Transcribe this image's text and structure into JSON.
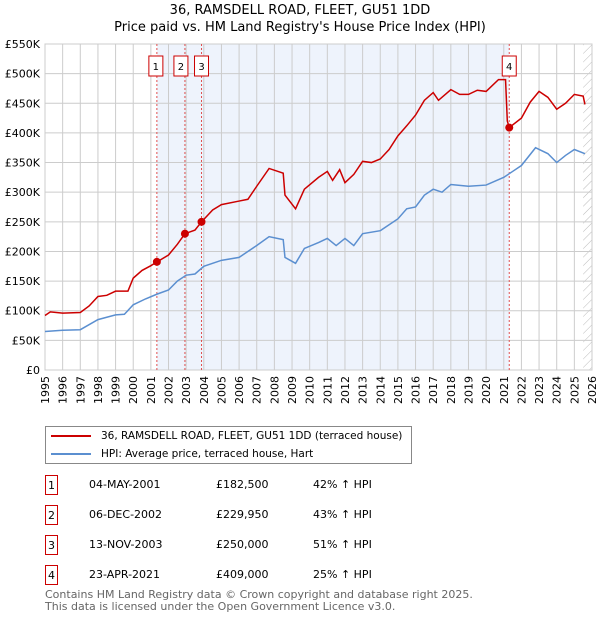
{
  "chart_data": {
    "type": "line",
    "title": "36, RAMSDELL ROAD, FLEET, GU51 1DD",
    "subtitle": "Price paid vs. HM Land Registry's House Price Index (HPI)",
    "xlim": [
      1995,
      2026
    ],
    "ylim": [
      0,
      550000
    ],
    "x_ticks": [
      "1995",
      "1996",
      "1997",
      "1998",
      "1999",
      "2000",
      "2001",
      "2002",
      "2003",
      "2004",
      "2005",
      "2006",
      "2007",
      "2008",
      "2009",
      "2010",
      "2011",
      "2012",
      "2013",
      "2014",
      "2015",
      "2016",
      "2017",
      "2018",
      "2019",
      "2020",
      "2021",
      "2022",
      "2023",
      "2024",
      "2025",
      "2026"
    ],
    "y_ticks": [
      {
        "v": 0,
        "l": "£0"
      },
      {
        "v": 50000,
        "l": "£50K"
      },
      {
        "v": 100000,
        "l": "£100K"
      },
      {
        "v": 150000,
        "l": "£150K"
      },
      {
        "v": 200000,
        "l": "£200K"
      },
      {
        "v": 250000,
        "l": "£250K"
      },
      {
        "v": 300000,
        "l": "£300K"
      },
      {
        "v": 350000,
        "l": "£350K"
      },
      {
        "v": 400000,
        "l": "£400K"
      },
      {
        "v": 450000,
        "l": "£450K"
      },
      {
        "v": 500000,
        "l": "£500K"
      },
      {
        "v": 550000,
        "l": "£550K"
      }
    ],
    "grid": true,
    "series": [
      {
        "name": "36, RAMSDELL ROAD, FLEET, GU51 1DD (terraced house)",
        "color": "#cc0000",
        "points": [
          [
            1995,
            92000
          ],
          [
            1995.3,
            98000
          ],
          [
            1996,
            96000
          ],
          [
            1997,
            97000
          ],
          [
            1997.5,
            108000
          ],
          [
            1998,
            124000
          ],
          [
            1998.5,
            126000
          ],
          [
            1999,
            133000
          ],
          [
            1999.7,
            133000
          ],
          [
            2000,
            155000
          ],
          [
            2000.5,
            168000
          ],
          [
            2001,
            176000
          ],
          [
            2001.35,
            182500
          ],
          [
            2002,
            194000
          ],
          [
            2002.5,
            212000
          ],
          [
            2002.93,
            229950
          ],
          [
            2003.5,
            236000
          ],
          [
            2003.87,
            250000
          ],
          [
            2004.5,
            270000
          ],
          [
            2005,
            279000
          ],
          [
            2006,
            285000
          ],
          [
            2006.5,
            288000
          ],
          [
            2007,
            310000
          ],
          [
            2007.7,
            340000
          ],
          [
            2008.5,
            332000
          ],
          [
            2008.6,
            295000
          ],
          [
            2009.2,
            272000
          ],
          [
            2009.7,
            305000
          ],
          [
            2010.5,
            325000
          ],
          [
            2011,
            335000
          ],
          [
            2011.3,
            320000
          ],
          [
            2011.7,
            338000
          ],
          [
            2012,
            316000
          ],
          [
            2012.5,
            330000
          ],
          [
            2013,
            352000
          ],
          [
            2013.5,
            350000
          ],
          [
            2014,
            356000
          ],
          [
            2014.5,
            372000
          ],
          [
            2015,
            395000
          ],
          [
            2015.5,
            412000
          ],
          [
            2016,
            430000
          ],
          [
            2016.5,
            455000
          ],
          [
            2017,
            468000
          ],
          [
            2017.3,
            455000
          ],
          [
            2018,
            473000
          ],
          [
            2018.5,
            465000
          ],
          [
            2019,
            465000
          ],
          [
            2019.5,
            472000
          ],
          [
            2020,
            470000
          ],
          [
            2020.7,
            490000
          ],
          [
            2021.1,
            490000
          ],
          [
            2021.2,
            420000
          ],
          [
            2021.31,
            409000
          ],
          [
            2022,
            425000
          ],
          [
            2022.5,
            452000
          ],
          [
            2023,
            470000
          ],
          [
            2023.5,
            460000
          ],
          [
            2024,
            440000
          ],
          [
            2024.5,
            450000
          ],
          [
            2025,
            465000
          ],
          [
            2025.5,
            462000
          ],
          [
            2025.6,
            448000
          ]
        ]
      },
      {
        "name": "HPI: Average price, terraced house, Hart",
        "color": "#5b8fd0",
        "points": [
          [
            1995,
            65000
          ],
          [
            1996,
            67000
          ],
          [
            1997,
            68000
          ],
          [
            1998,
            85000
          ],
          [
            1999,
            93000
          ],
          [
            1999.5,
            94000
          ],
          [
            2000,
            110000
          ],
          [
            2000.7,
            120000
          ],
          [
            2001.35,
            128000
          ],
          [
            2002,
            135000
          ],
          [
            2002.5,
            150000
          ],
          [
            2003,
            160000
          ],
          [
            2003.5,
            162000
          ],
          [
            2004,
            175000
          ],
          [
            2005,
            185000
          ],
          [
            2006,
            190000
          ],
          [
            2007,
            210000
          ],
          [
            2007.7,
            225000
          ],
          [
            2008.5,
            220000
          ],
          [
            2008.6,
            190000
          ],
          [
            2009.2,
            180000
          ],
          [
            2009.7,
            205000
          ],
          [
            2010.5,
            215000
          ],
          [
            2011,
            222000
          ],
          [
            2011.5,
            210000
          ],
          [
            2012,
            222000
          ],
          [
            2012.5,
            210000
          ],
          [
            2013,
            230000
          ],
          [
            2014,
            235000
          ],
          [
            2015,
            255000
          ],
          [
            2015.5,
            272000
          ],
          [
            2016,
            275000
          ],
          [
            2016.5,
            295000
          ],
          [
            2017,
            305000
          ],
          [
            2017.5,
            300000
          ],
          [
            2018,
            313000
          ],
          [
            2019,
            310000
          ],
          [
            2020,
            312000
          ],
          [
            2021,
            325000
          ],
          [
            2021.5,
            335000
          ],
          [
            2022,
            345000
          ],
          [
            2022.8,
            375000
          ],
          [
            2023.5,
            365000
          ],
          [
            2024,
            350000
          ],
          [
            2024.5,
            362000
          ],
          [
            2025,
            372000
          ],
          [
            2025.6,
            365000
          ]
        ]
      }
    ],
    "shaded_range": [
      2001.35,
      2021.31
    ],
    "hatched_from": 2025.5,
    "sales": [
      {
        "n": "1",
        "date": "04-MAY-2001",
        "x": 2001.34,
        "price": "£182,500",
        "value": 182500,
        "hpi": "42% ↑ HPI"
      },
      {
        "n": "2",
        "date": "06-DEC-2002",
        "x": 2002.93,
        "price": "£229,950",
        "value": 229950,
        "hpi": "43% ↑ HPI"
      },
      {
        "n": "3",
        "date": "13-NOV-2003",
        "x": 2003.87,
        "price": "£250,000",
        "value": 250000,
        "hpi": "51% ↑ HPI"
      },
      {
        "n": "4",
        "date": "23-APR-2021",
        "x": 2021.31,
        "price": "£409,000",
        "value": 409000,
        "hpi": "25% ↑ HPI"
      }
    ]
  },
  "footer": {
    "line1": "Contains HM Land Registry data © Crown copyright and database right 2025.",
    "line2": "This data is licensed under the Open Government Licence v3.0."
  }
}
